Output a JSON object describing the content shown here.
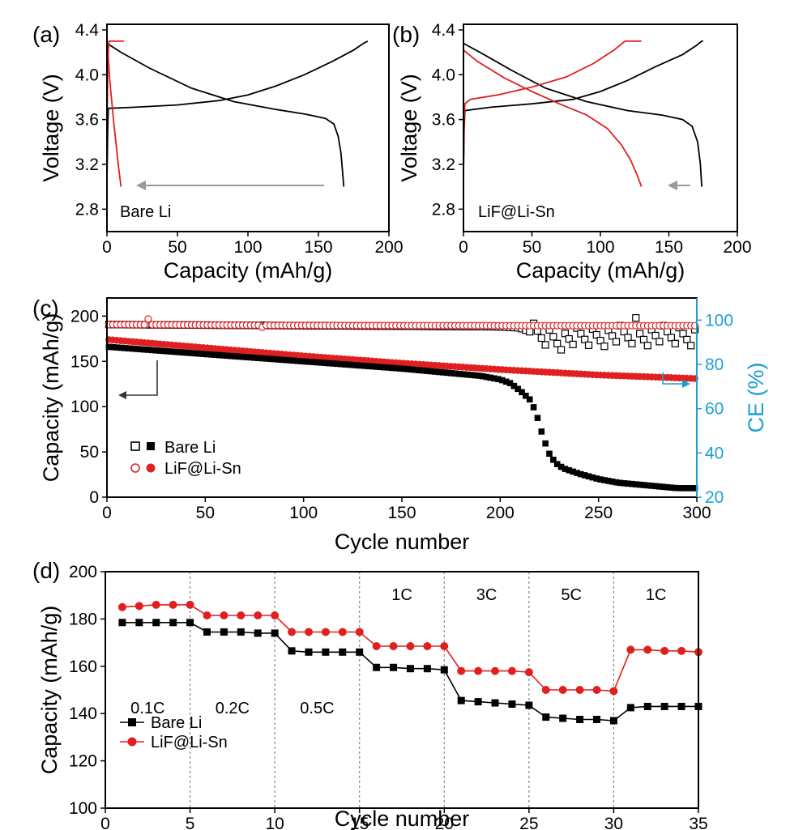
{
  "chart_data": [
    {
      "panel": "(a)",
      "type": "line",
      "xlabel": "Capacity (mAh/g)",
      "ylabel": "Voltage (V)",
      "xlim": [
        0,
        200
      ],
      "ylim": [
        2.6,
        4.45
      ],
      "xticks": [
        "0",
        "50",
        "100",
        "150",
        "200"
      ],
      "yticks": [
        "2.8",
        "3.2",
        "3.6",
        "4.0",
        "4.4"
      ],
      "annotation": "Bare Li",
      "arrow_direction": "left",
      "series": [
        {
          "name": "charge 1st",
          "color": "#000000",
          "points": [
            [
              0,
              3.05
            ],
            [
              0.5,
              3.5
            ],
            [
              1,
              3.7
            ],
            [
              20,
              3.71
            ],
            [
              50,
              3.73
            ],
            [
              80,
              3.77
            ],
            [
              100,
              3.82
            ],
            [
              120,
              3.9
            ],
            [
              140,
              4.0
            ],
            [
              160,
              4.12
            ],
            [
              175,
              4.22
            ],
            [
              182,
              4.28
            ],
            [
              185,
              4.3
            ]
          ]
        },
        {
          "name": "discharge 1st",
          "color": "#000000",
          "points": [
            [
              0,
              4.28
            ],
            [
              10,
              4.2
            ],
            [
              30,
              4.06
            ],
            [
              60,
              3.88
            ],
            [
              90,
              3.76
            ],
            [
              120,
              3.69
            ],
            [
              140,
              3.65
            ],
            [
              155,
              3.61
            ],
            [
              161,
              3.56
            ],
            [
              164,
              3.45
            ],
            [
              166,
              3.3
            ],
            [
              167,
              3.15
            ],
            [
              168,
              3.0
            ]
          ]
        },
        {
          "name": "charge late",
          "color": "#e02020",
          "points": [
            [
              0,
              3.3
            ],
            [
              0.3,
              3.8
            ],
            [
              0.6,
              4.1
            ],
            [
              1,
              4.22
            ],
            [
              1.5,
              4.3
            ],
            [
              12,
              4.3
            ]
          ]
        },
        {
          "name": "discharge late",
          "color": "#e02020",
          "points": [
            [
              0,
              4.3
            ],
            [
              1,
              4.15
            ],
            [
              2,
              3.95
            ],
            [
              3.5,
              3.75
            ],
            [
              5,
              3.55
            ],
            [
              6.5,
              3.38
            ],
            [
              8,
              3.2
            ],
            [
              9.5,
              3.05
            ],
            [
              10,
              3.0
            ]
          ]
        }
      ]
    },
    {
      "panel": "(b)",
      "type": "line",
      "xlabel": "Capacity (mAh/g)",
      "ylabel": "Voltage (V)",
      "xlim": [
        0,
        200
      ],
      "ylim": [
        2.6,
        4.45
      ],
      "xticks": [
        "0",
        "50",
        "100",
        "150",
        "200"
      ],
      "yticks": [
        "2.8",
        "3.2",
        "3.6",
        "4.0",
        "4.4"
      ],
      "annotation": "LiF@Li-Sn",
      "arrow_direction": "left",
      "series": [
        {
          "name": "charge 1st",
          "color": "#000000",
          "points": [
            [
              0,
              3.1
            ],
            [
              0.5,
              3.5
            ],
            [
              1,
              3.68
            ],
            [
              20,
              3.71
            ],
            [
              50,
              3.74
            ],
            [
              80,
              3.78
            ],
            [
              100,
              3.85
            ],
            [
              120,
              3.95
            ],
            [
              140,
              4.07
            ],
            [
              160,
              4.18
            ],
            [
              170,
              4.26
            ],
            [
              174,
              4.3
            ],
            [
              175,
              4.3
            ]
          ]
        },
        {
          "name": "discharge 1st",
          "color": "#000000",
          "points": [
            [
              0,
              4.28
            ],
            [
              15,
              4.18
            ],
            [
              35,
              4.04
            ],
            [
              60,
              3.88
            ],
            [
              90,
              3.76
            ],
            [
              120,
              3.68
            ],
            [
              145,
              3.64
            ],
            [
              160,
              3.6
            ],
            [
              167,
              3.54
            ],
            [
              171,
              3.4
            ],
            [
              173,
              3.2
            ],
            [
              174,
              3.0
            ]
          ]
        },
        {
          "name": "charge late",
          "color": "#e02020",
          "points": [
            [
              0,
              3.2
            ],
            [
              0.5,
              3.6
            ],
            [
              1,
              3.74
            ],
            [
              5,
              3.78
            ],
            [
              25,
              3.82
            ],
            [
              50,
              3.89
            ],
            [
              75,
              3.98
            ],
            [
              95,
              4.1
            ],
            [
              110,
              4.22
            ],
            [
              118,
              4.3
            ],
            [
              130,
              4.3
            ]
          ]
        },
        {
          "name": "discharge late",
          "color": "#e02020",
          "points": [
            [
              0,
              4.22
            ],
            [
              10,
              4.12
            ],
            [
              30,
              3.97
            ],
            [
              50,
              3.85
            ],
            [
              70,
              3.74
            ],
            [
              90,
              3.64
            ],
            [
              105,
              3.52
            ],
            [
              115,
              3.38
            ],
            [
              122,
              3.24
            ],
            [
              127,
              3.1
            ],
            [
              130,
              3.0
            ]
          ]
        }
      ]
    },
    {
      "panel": "(c)",
      "type": "scatter",
      "xlabel": "Cycle number",
      "ylabel": "Capacity (mAh/g)",
      "y2label": "CE (%)",
      "xlim": [
        0,
        300
      ],
      "ylim": [
        0,
        220
      ],
      "y2lim": [
        20,
        110
      ],
      "xticks": [
        "0",
        "50",
        "100",
        "150",
        "200",
        "250",
        "300"
      ],
      "yticks": [
        "0",
        "50",
        "100",
        "150",
        "200"
      ],
      "y2ticks": [
        "20",
        "40",
        "60",
        "80",
        "100"
      ],
      "colors": {
        "bare": "#000000",
        "lif": "#e02020",
        "ce_axis": "#1a9fd6"
      },
      "legend": [
        {
          "label": "Bare Li",
          "series": "bare"
        },
        {
          "label": "LiF@Li-Sn",
          "series": "lif"
        }
      ],
      "series": [
        {
          "name": "Bare Li capacity",
          "color": "#000000",
          "marker": "square-filled",
          "axis": "left",
          "knots": [
            [
              1,
              166
            ],
            [
              50,
              158
            ],
            [
              100,
              150
            ],
            [
              150,
              142
            ],
            [
              190,
              134
            ],
            [
              200,
              130
            ],
            [
              205,
              126
            ],
            [
              210,
              118
            ],
            [
              215,
              108
            ],
            [
              218,
              95
            ],
            [
              220,
              80
            ],
            [
              222,
              65
            ],
            [
              225,
              48
            ],
            [
              228,
              38
            ],
            [
              232,
              32
            ],
            [
              240,
              26
            ],
            [
              250,
              20
            ],
            [
              260,
              16
            ],
            [
              270,
              14
            ],
            [
              280,
              12
            ],
            [
              290,
              10
            ],
            [
              300,
              10
            ]
          ]
        },
        {
          "name": "LiF@Li-Sn capacity",
          "color": "#e02020",
          "marker": "circle-filled",
          "axis": "left",
          "knots": [
            [
              1,
              174
            ],
            [
              50,
              165
            ],
            [
              100,
              156
            ],
            [
              150,
              148
            ],
            [
              200,
              141
            ],
            [
              250,
              135
            ],
            [
              300,
              131
            ]
          ]
        },
        {
          "name": "Bare Li CE",
          "color": "#000000",
          "marker": "square-open",
          "axis": "right",
          "knots": [
            [
              1,
              98
            ],
            [
              100,
              97.5
            ],
            [
              200,
              97
            ],
            [
              210,
              96.5
            ],
            [
              220,
              93
            ],
            [
              230,
              91
            ],
            [
              240,
              92
            ],
            [
              260,
              93
            ],
            [
              280,
              93
            ],
            [
              300,
              93
            ]
          ]
        },
        {
          "name": "LiF@Li-Sn CE",
          "color": "#e02020",
          "marker": "circle-open",
          "axis": "right",
          "knots": [
            [
              1,
              98
            ],
            [
              100,
              97.6
            ],
            [
              200,
              97.5
            ],
            [
              300,
              97.5
            ]
          ]
        }
      ]
    },
    {
      "panel": "(d)",
      "type": "line",
      "xlabel": "Cycle number",
      "ylabel": "Capacity (mAh/g)",
      "xlim": [
        0,
        35
      ],
      "ylim": [
        100,
        200
      ],
      "xticks": [
        "0",
        "5",
        "10",
        "15",
        "20",
        "25",
        "30",
        "35"
      ],
      "yticks": [
        "100",
        "120",
        "140",
        "160",
        "180",
        "200"
      ],
      "rate_labels": [
        "0.1C",
        "0.2C",
        "0.5C",
        "1C",
        "3C",
        "5C",
        "1C"
      ],
      "legend": [
        {
          "label": "Bare Li",
          "series": 0
        },
        {
          "label": "LiF@Li-Sn",
          "series": 1
        }
      ],
      "x": [
        1,
        2,
        3,
        4,
        5,
        6,
        7,
        8,
        9,
        10,
        11,
        12,
        13,
        14,
        15,
        16,
        17,
        18,
        19,
        20,
        21,
        22,
        23,
        24,
        25,
        26,
        27,
        28,
        29,
        30,
        31,
        32,
        33,
        34,
        35
      ],
      "series": [
        {
          "name": "Bare Li",
          "color": "#000000",
          "marker": "square",
          "values": [
            178.5,
            178.5,
            178.5,
            178.5,
            178.5,
            174.5,
            174.5,
            174.5,
            174,
            174,
            166.5,
            166,
            166,
            166,
            166,
            159.5,
            159.5,
            159,
            159,
            158.5,
            145.5,
            145,
            144.5,
            144,
            143.5,
            138.5,
            138,
            137.5,
            137.5,
            137,
            142.5,
            143,
            143,
            143,
            143
          ]
        },
        {
          "name": "LiF@Li-Sn",
          "color": "#e02020",
          "marker": "circle",
          "values": [
            185,
            185.5,
            186,
            186,
            186,
            181.5,
            181.5,
            181.5,
            181.5,
            181.5,
            174.5,
            174.5,
            174.5,
            174.5,
            174.5,
            168.5,
            168.5,
            168.5,
            168.5,
            168.5,
            158,
            158,
            158,
            158,
            157.5,
            150,
            150,
            150,
            150,
            149.5,
            167,
            167,
            166.5,
            166.5,
            166
          ]
        }
      ]
    }
  ]
}
